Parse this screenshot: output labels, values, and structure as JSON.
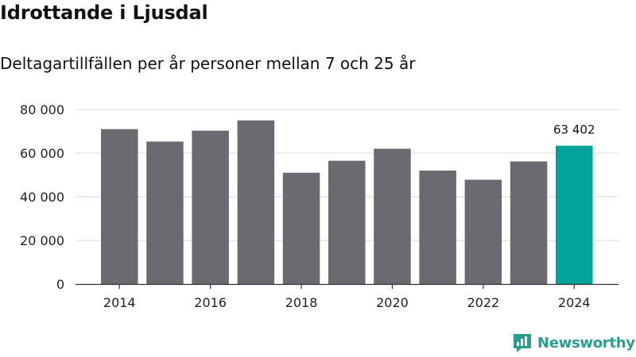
{
  "header": {
    "title": "Idrottande i Ljusdal",
    "subtitle": "Deltagartillfällen per år personer mellan 7 och 25 år"
  },
  "brand": {
    "name": "Newsworthy",
    "icon": "newsworthy-logo-icon",
    "color": "#2a9d8f"
  },
  "chart_data": {
    "type": "bar",
    "categories": [
      "2014",
      "2015",
      "2016",
      "2017",
      "2018",
      "2019",
      "2020",
      "2021",
      "2022",
      "2023",
      "2024"
    ],
    "values": [
      71000,
      65300,
      70300,
      75000,
      51000,
      56500,
      62000,
      52000,
      47800,
      56200,
      63402
    ],
    "ylim": [
      0,
      80000
    ],
    "yticks": [
      0,
      20000,
      40000,
      60000,
      80000
    ],
    "ytick_labels": [
      "0",
      "20 000",
      "40 000",
      "60 000",
      "80 000"
    ],
    "xtick_labels": [
      "2014",
      "2016",
      "2018",
      "2020",
      "2022",
      "2024"
    ],
    "highlight": {
      "category": "2024",
      "label": "63 402"
    },
    "colors": {
      "bar": "#6b6a70",
      "highlight": "#00a39a",
      "grid": "#d9d9d9",
      "axis": "#333333"
    },
    "grid": true,
    "legend": "none"
  }
}
